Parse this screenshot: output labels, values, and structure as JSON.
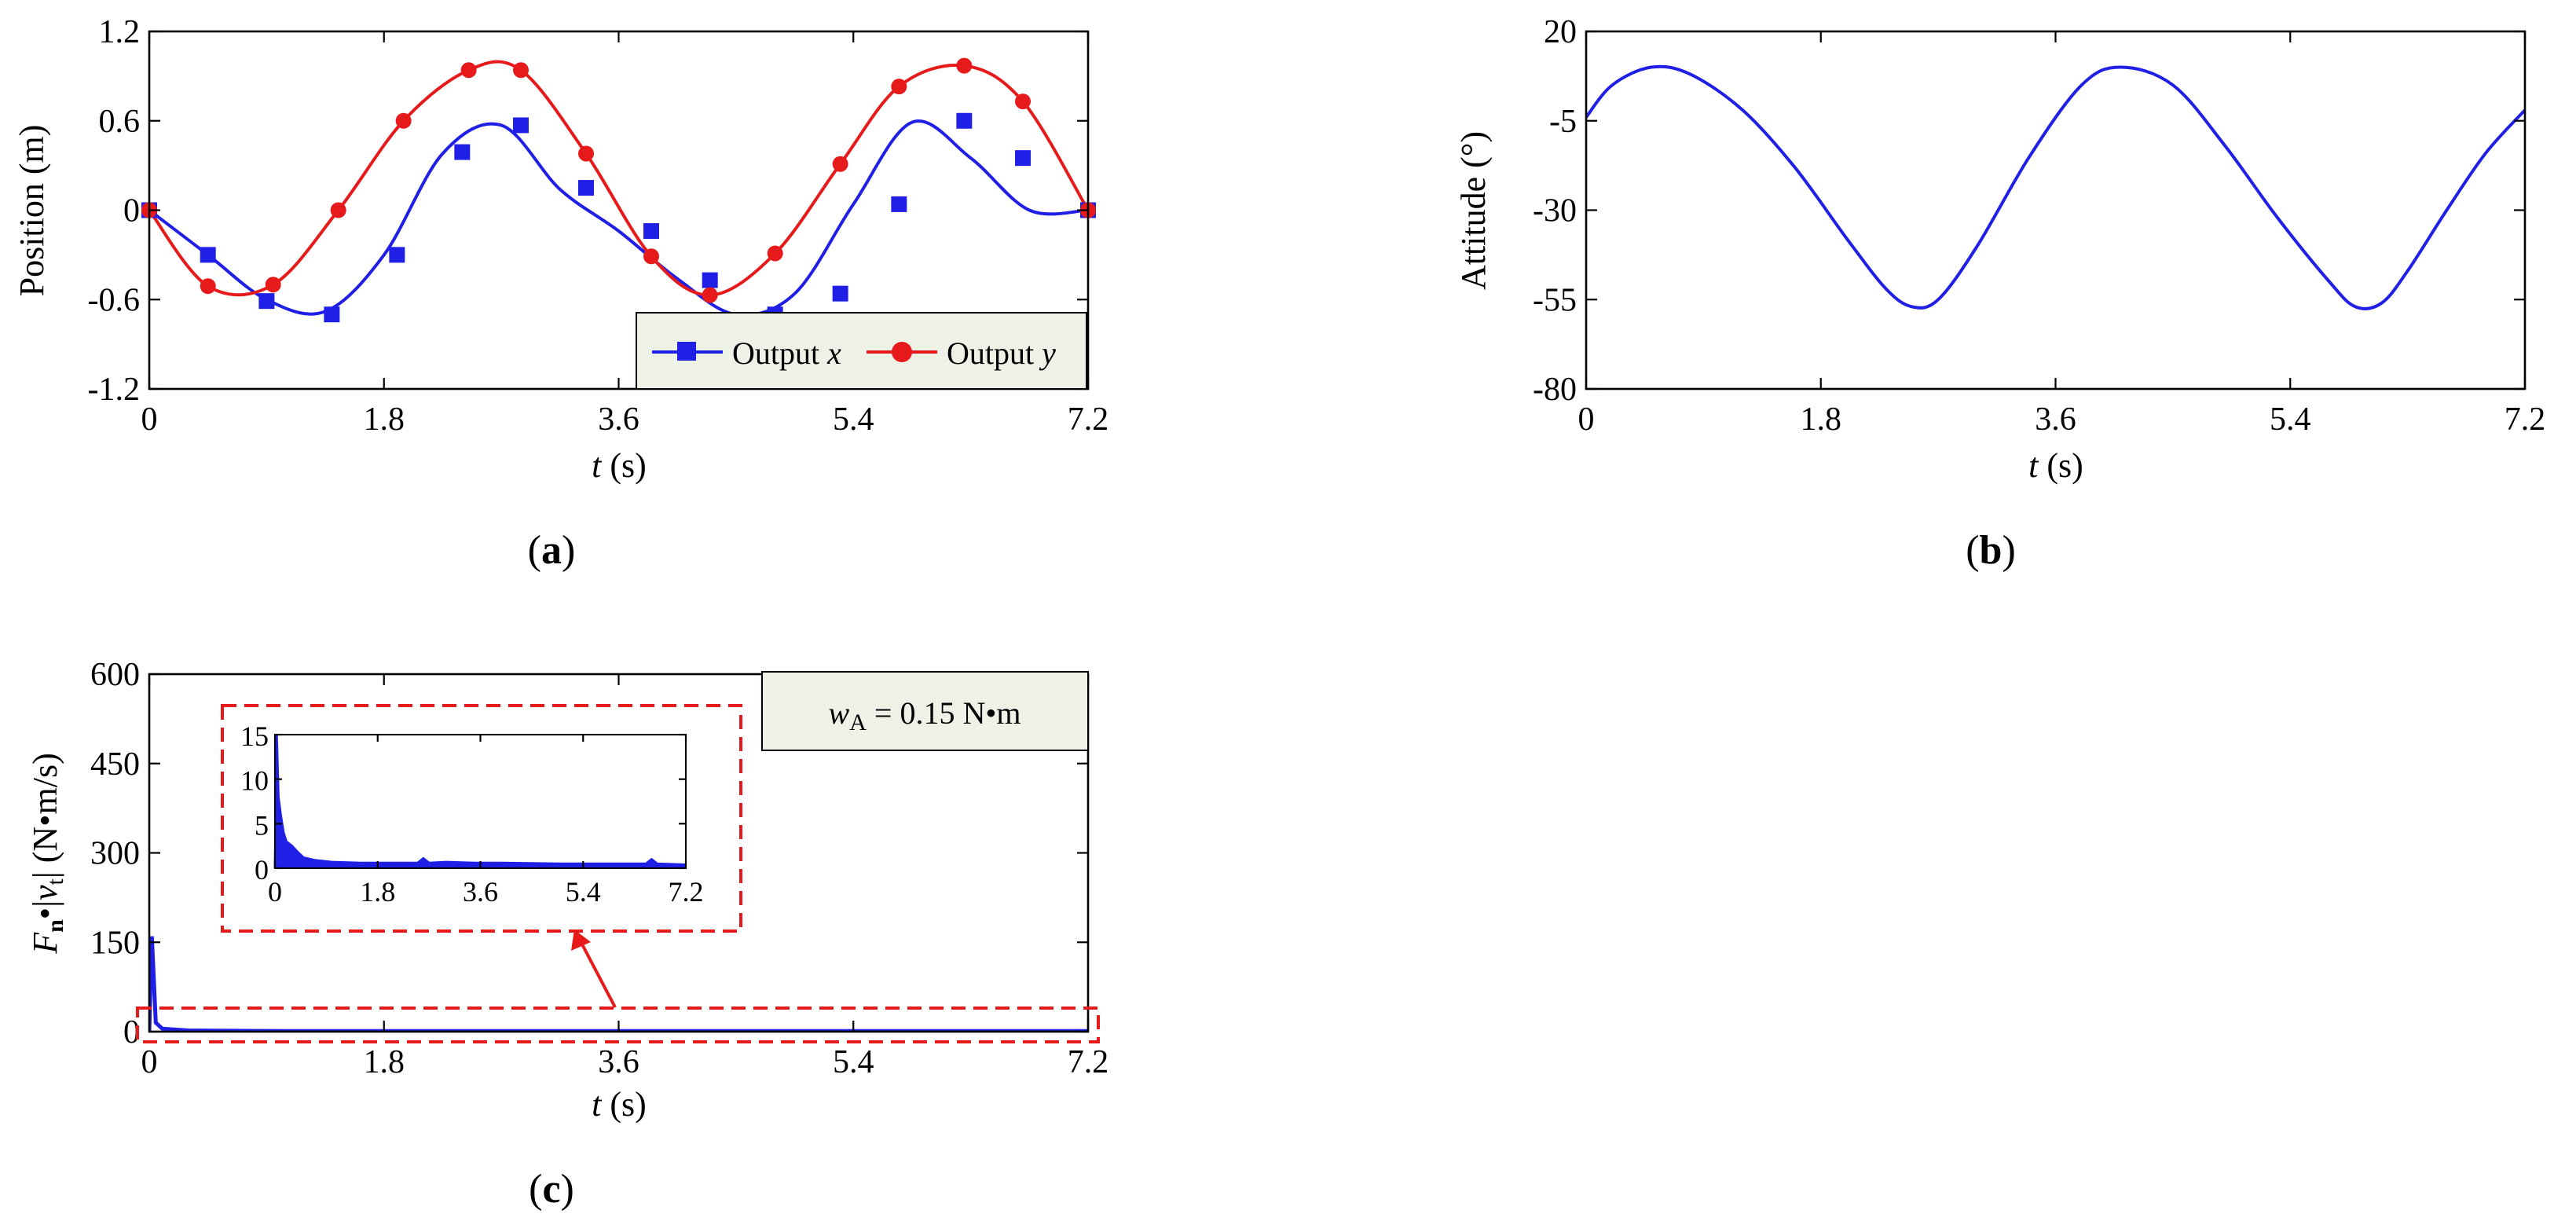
{
  "chart_data": [
    {
      "id": "a",
      "type": "line",
      "panel_label": "a",
      "xlabel_italic": "t",
      "xlabel_unit": " (s)",
      "ylabel": "Position (m)",
      "xlim": [
        0,
        7.2
      ],
      "ylim": [
        -1.2,
        1.2
      ],
      "xticks": [
        "0",
        "1.8",
        "3.6",
        "5.4",
        "7.2"
      ],
      "yticks": [
        "1.2",
        "0.6",
        "0",
        "-0.6",
        "-1.2"
      ],
      "legend": {
        "placement": "bottom-right",
        "entries": [
          {
            "prefix": "Output ",
            "var": "x"
          },
          {
            "prefix": "Output ",
            "var": "y"
          }
        ]
      },
      "series": [
        {
          "name": "Output x",
          "color": "#1f1fe6",
          "marker": "square",
          "x": [
            0,
            0.45,
            0.9,
            1.35,
            1.8,
            2.25,
            2.7,
            3.15,
            3.6,
            4.05,
            4.5,
            4.95,
            5.4,
            5.85,
            6.3,
            6.75,
            7.2
          ],
          "y": [
            0,
            -0.3,
            -0.6,
            -0.68,
            -0.3,
            0.38,
            0.57,
            0.14,
            -0.14,
            -0.46,
            -0.7,
            -0.56,
            0.04,
            0.59,
            0.35,
            0.0,
            0.0
          ],
          "markers_x": [
            0,
            0.45,
            0.9,
            1.4,
            1.9,
            2.4,
            2.85,
            3.35,
            3.85,
            4.3,
            4.8,
            5.3,
            5.75,
            6.25,
            6.7,
            7.2
          ],
          "markers_y": [
            0,
            -0.3,
            -0.61,
            -0.7,
            -0.3,
            0.39,
            0.57,
            0.15,
            -0.14,
            -0.47,
            -0.7,
            -0.56,
            0.04,
            0.6,
            0.35,
            0.0
          ]
        },
        {
          "name": "Output y",
          "color": "#e61a1a",
          "marker": "circle",
          "x": [
            0,
            0.45,
            0.95,
            1.45,
            1.95,
            2.45,
            2.85,
            3.35,
            3.85,
            4.3,
            4.8,
            5.3,
            5.75,
            6.25,
            6.7,
            7.2
          ],
          "y": [
            0,
            -0.51,
            -0.5,
            0.0,
            0.6,
            0.94,
            0.94,
            0.38,
            -0.31,
            -0.57,
            -0.29,
            0.31,
            0.83,
            0.97,
            0.73,
            0.0
          ]
        }
      ]
    },
    {
      "id": "b",
      "type": "line",
      "panel_label": "b",
      "xlabel_italic": "t",
      "xlabel_unit": " (s)",
      "ylabel": "Attitude (°)",
      "xlim": [
        0,
        7.2
      ],
      "ylim": [
        -80,
        20
      ],
      "xticks": [
        "0",
        "1.8",
        "3.6",
        "5.4",
        "7.2"
      ],
      "yticks": [
        "20",
        "-5",
        "-30",
        "-55",
        "-80"
      ],
      "series": [
        {
          "name": "Attitude",
          "color": "#1f1fe6",
          "x": [
            0,
            0.2,
            0.5,
            0.8,
            1.2,
            1.6,
            2.0,
            2.3,
            2.5,
            2.7,
            3.0,
            3.4,
            3.8,
            4.1,
            4.5,
            4.9,
            5.3,
            5.7,
            5.9,
            6.1,
            6.3,
            6.6,
            6.9,
            7.2
          ],
          "y": [
            -4,
            5,
            10,
            8,
            -2,
            -18,
            -38,
            -52,
            -57,
            -55,
            -40,
            -15,
            5,
            10,
            5,
            -12,
            -32,
            -50,
            -57,
            -56,
            -47,
            -30,
            -14,
            -2
          ]
        }
      ]
    },
    {
      "id": "c",
      "type": "line",
      "panel_label": "c",
      "xlabel_italic": "t",
      "xlabel_unit": " (s)",
      "ylabel_parts": {
        "F": "F",
        "n": "n",
        "dot": "•|",
        "v": "v",
        "t": "t",
        "unit": "| (N•m/s)"
      },
      "xlim": [
        0,
        7.2
      ],
      "ylim": [
        0,
        600
      ],
      "xticks": [
        "0",
        "1.8",
        "3.6",
        "5.4",
        "7.2"
      ],
      "yticks": [
        "600",
        "450",
        "300",
        "150",
        "0"
      ],
      "annotation": {
        "var": "w",
        "sub": "A",
        "text": " = 0.15 N•m"
      },
      "series": [
        {
          "name": "Fn|vt|",
          "color": "#1f1fe6",
          "x": [
            0,
            0.02,
            0.05,
            0.1,
            0.3,
            1.0,
            3.6,
            7.2
          ],
          "y": [
            0,
            160,
            15,
            5,
            2,
            1,
            1,
            1
          ]
        }
      ],
      "inset": {
        "xlim": [
          0,
          7.2
        ],
        "ylim": [
          0,
          15
        ],
        "xticks": [
          "0",
          "1.8",
          "3.6",
          "5.4",
          "7.2"
        ],
        "yticks": [
          "15",
          "10",
          "5",
          "0"
        ],
        "x": [
          0,
          0.03,
          0.06,
          0.1,
          0.15,
          0.2,
          0.3,
          0.4,
          0.5,
          0.7,
          1.0,
          1.5,
          2.0,
          2.5,
          2.6,
          2.7,
          3.0,
          3.5,
          4.0,
          5.0,
          6.0,
          6.5,
          6.6,
          6.7,
          7.2
        ],
        "y": [
          0,
          15,
          8,
          6,
          4,
          3,
          2.5,
          1.8,
          1.2,
          0.9,
          0.7,
          0.6,
          0.6,
          0.6,
          1.1,
          0.6,
          0.7,
          0.6,
          0.6,
          0.5,
          0.5,
          0.5,
          1.0,
          0.5,
          0.4
        ]
      }
    }
  ]
}
